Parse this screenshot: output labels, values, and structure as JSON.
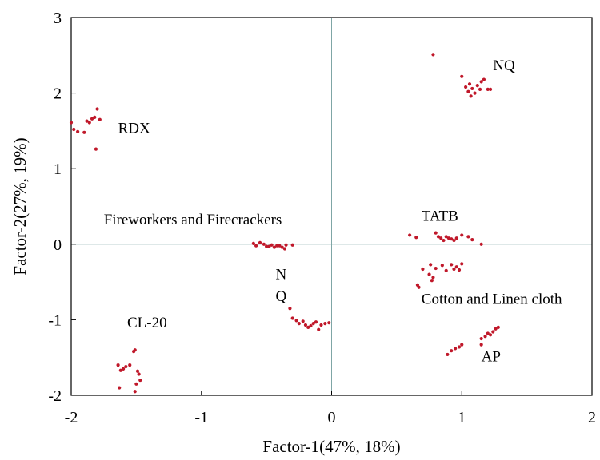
{
  "chart_data": {
    "type": "scatter",
    "xlabel": "Factor-1(47%, 18%)",
    "ylabel": "Factor-2(27%, 19%)",
    "xlim": [
      -2,
      2
    ],
    "ylim": [
      -2,
      3
    ],
    "xticks": [
      -2,
      -1,
      0,
      1,
      2
    ],
    "yticks": [
      -2,
      -1,
      0,
      1,
      2,
      3
    ],
    "xtick_labels": [
      "-2",
      "-1",
      "0",
      "1",
      "2"
    ],
    "ytick_labels": [
      "-2",
      "-1",
      "0",
      "1",
      "2",
      "3"
    ],
    "grid": false,
    "reference_lines": "x=0 and y=0",
    "marker_color": "#c0182a",
    "axis_line_color": "#7fa6a6",
    "annotations": [
      {
        "text": "RDX",
        "x": -1.64,
        "y": 1.47
      },
      {
        "text": "NQ",
        "x": 1.24,
        "y": 2.3
      },
      {
        "text": "Fireworkers and Firecrackers",
        "x": -1.75,
        "y": 0.26
      },
      {
        "text": "TATB",
        "x": 0.69,
        "y": 0.31
      },
      {
        "text": "N",
        "x": -0.43,
        "y": -0.46
      },
      {
        "text": "Q",
        "x": -0.43,
        "y": -0.75
      },
      {
        "text": "Cotton and Linen cloth",
        "x": 0.69,
        "y": -0.79
      },
      {
        "text": "CL-20",
        "x": -1.57,
        "y": -1.1
      },
      {
        "text": "AP",
        "x": 1.15,
        "y": -1.55
      }
    ],
    "series": [
      {
        "points": [
          [
            -2.0,
            1.61
          ],
          [
            -1.98,
            1.52
          ],
          [
            -1.95,
            1.49
          ],
          [
            -1.9,
            1.48
          ],
          [
            -1.88,
            1.63
          ],
          [
            -1.86,
            1.61
          ],
          [
            -1.84,
            1.66
          ],
          [
            -1.82,
            1.68
          ],
          [
            -1.8,
            1.79
          ],
          [
            -1.78,
            1.65
          ],
          [
            -1.81,
            1.26
          ]
        ]
      },
      {
        "points": [
          [
            0.78,
            2.51
          ],
          [
            1.0,
            2.22
          ],
          [
            1.03,
            2.08
          ],
          [
            1.05,
            2.02
          ],
          [
            1.06,
            2.12
          ],
          [
            1.07,
            1.96
          ],
          [
            1.08,
            2.06
          ],
          [
            1.1,
            2.0
          ],
          [
            1.12,
            2.1
          ],
          [
            1.14,
            2.05
          ],
          [
            1.15,
            2.15
          ],
          [
            1.17,
            2.18
          ],
          [
            1.2,
            2.05
          ],
          [
            1.22,
            2.05
          ]
        ]
      },
      {
        "points": [
          [
            -0.6,
            0.01
          ],
          [
            -0.58,
            -0.02
          ],
          [
            -0.55,
            0.02
          ],
          [
            -0.52,
            0.0
          ],
          [
            -0.5,
            -0.03
          ],
          [
            -0.48,
            -0.03
          ],
          [
            -0.46,
            -0.01
          ],
          [
            -0.44,
            -0.04
          ],
          [
            -0.42,
            -0.02
          ],
          [
            -0.4,
            -0.02
          ],
          [
            -0.38,
            -0.04
          ],
          [
            -0.36,
            -0.06
          ],
          [
            -0.35,
            -0.01
          ],
          [
            -0.3,
            -0.01
          ]
        ]
      },
      {
        "points": [
          [
            0.6,
            0.12
          ],
          [
            0.65,
            0.09
          ],
          [
            0.8,
            0.15
          ],
          [
            0.82,
            0.1
          ],
          [
            0.84,
            0.08
          ],
          [
            0.86,
            0.05
          ],
          [
            0.88,
            0.1
          ],
          [
            0.9,
            0.08
          ],
          [
            0.92,
            0.07
          ],
          [
            0.94,
            0.05
          ],
          [
            0.96,
            0.08
          ],
          [
            1.0,
            0.12
          ],
          [
            1.05,
            0.1
          ],
          [
            1.08,
            0.06
          ],
          [
            1.15,
            0.0
          ]
        ]
      },
      {
        "points": [
          [
            0.66,
            -0.54
          ],
          [
            0.67,
            -0.57
          ],
          [
            0.7,
            -0.33
          ],
          [
            0.75,
            -0.4
          ],
          [
            0.76,
            -0.27
          ],
          [
            0.77,
            -0.48
          ],
          [
            0.78,
            -0.44
          ],
          [
            0.8,
            -0.32
          ],
          [
            0.85,
            -0.28
          ],
          [
            0.88,
            -0.35
          ],
          [
            0.92,
            -0.27
          ],
          [
            0.94,
            -0.33
          ],
          [
            0.96,
            -0.3
          ],
          [
            0.98,
            -0.34
          ],
          [
            1.0,
            -0.26
          ]
        ]
      },
      {
        "points": [
          [
            -0.32,
            -0.85
          ],
          [
            -0.3,
            -0.98
          ],
          [
            -0.27,
            -1.01
          ],
          [
            -0.25,
            -1.05
          ],
          [
            -0.22,
            -1.02
          ],
          [
            -0.2,
            -1.07
          ],
          [
            -0.18,
            -1.1
          ],
          [
            -0.16,
            -1.08
          ],
          [
            -0.14,
            -1.05
          ],
          [
            -0.12,
            -1.03
          ],
          [
            -0.1,
            -1.13
          ],
          [
            -0.08,
            -1.07
          ],
          [
            -0.05,
            -1.05
          ],
          [
            -0.02,
            -1.04
          ]
        ]
      },
      {
        "points": [
          [
            0.89,
            -1.46
          ],
          [
            0.92,
            -1.41
          ],
          [
            0.95,
            -1.38
          ],
          [
            0.98,
            -1.36
          ],
          [
            1.0,
            -1.33
          ],
          [
            1.15,
            -1.33
          ],
          [
            1.15,
            -1.25
          ],
          [
            1.18,
            -1.22
          ],
          [
            1.2,
            -1.18
          ],
          [
            1.22,
            -1.2
          ],
          [
            1.24,
            -1.16
          ],
          [
            1.26,
            -1.12
          ],
          [
            1.28,
            -1.1
          ]
        ]
      },
      {
        "points": [
          [
            -1.64,
            -1.6
          ],
          [
            -1.62,
            -1.67
          ],
          [
            -1.6,
            -1.65
          ],
          [
            -1.58,
            -1.62
          ],
          [
            -1.55,
            -1.6
          ],
          [
            -1.52,
            -1.42
          ],
          [
            -1.51,
            -1.4
          ],
          [
            -1.49,
            -1.68
          ],
          [
            -1.48,
            -1.72
          ],
          [
            -1.47,
            -1.8
          ],
          [
            -1.5,
            -1.85
          ],
          [
            -1.63,
            -1.9
          ],
          [
            -1.51,
            -1.95
          ]
        ]
      }
    ]
  }
}
